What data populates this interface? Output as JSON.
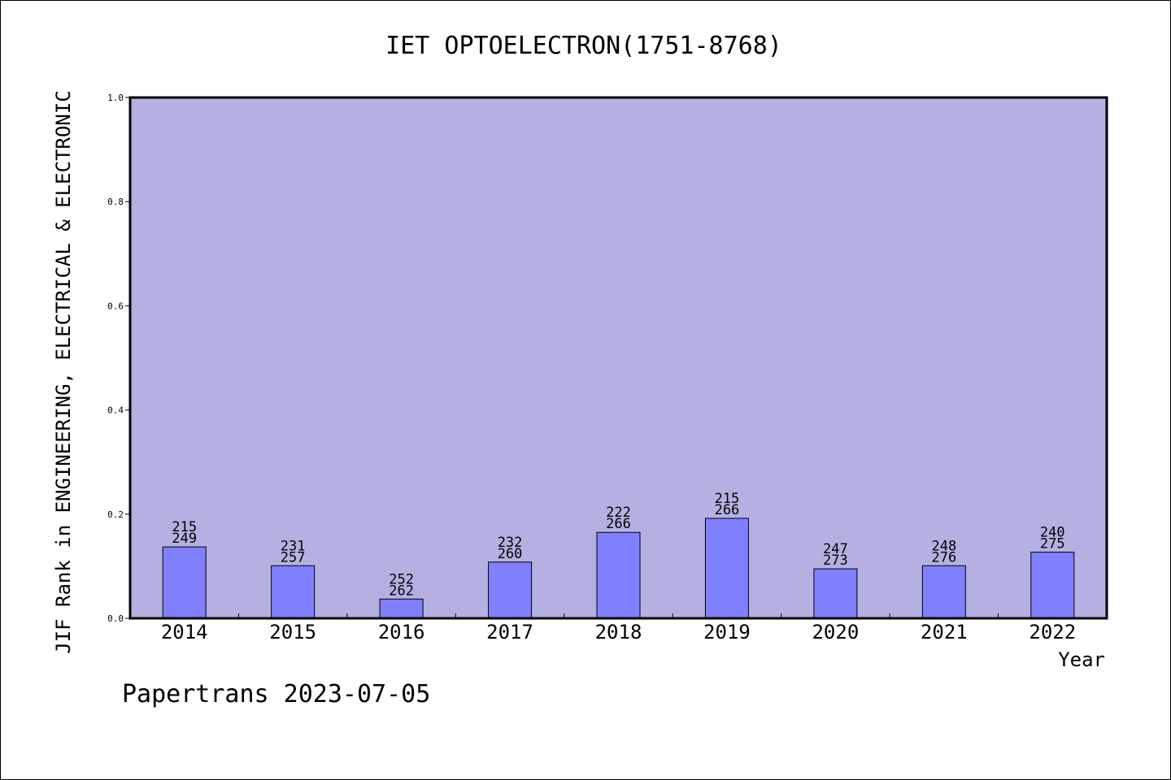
{
  "chart_data": {
    "type": "bar",
    "title": "IET OPTOELECTRON(1751-8768)",
    "xlabel": "Year",
    "ylabel": "JIF Rank in ENGINEERING, ELECTRICAL & ELECTRONIC",
    "ylim": [
      0,
      1.0
    ],
    "yticks": [
      "0.0",
      "0.2",
      "0.4",
      "0.6",
      "0.8",
      "1.0"
    ],
    "categories": [
      "2014",
      "2015",
      "2016",
      "2017",
      "2018",
      "2019",
      "2020",
      "2021",
      "2022"
    ],
    "values": [
      0.137,
      0.101,
      0.037,
      0.108,
      0.165,
      0.192,
      0.095,
      0.101,
      0.127
    ],
    "rank_labels": [
      "215",
      "231",
      "252",
      "232",
      "222",
      "215",
      "247",
      "248",
      "240"
    ],
    "total_labels": [
      "249",
      "257",
      "262",
      "260",
      "266",
      "266",
      "273",
      "276",
      "275"
    ],
    "grid": false,
    "colors": {
      "plot_bg": "#b5b0e2",
      "bar": "#8080ff",
      "axis": "#000000"
    }
  },
  "footer": "Papertrans 2023-07-05"
}
